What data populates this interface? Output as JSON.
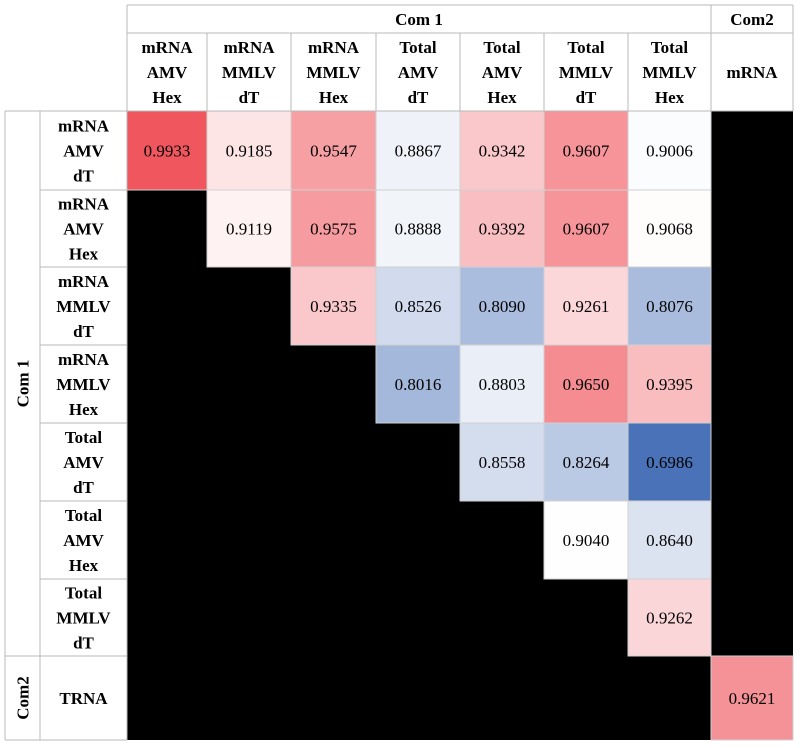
{
  "chart_data": {
    "type": "heatmap",
    "group_labels": {
      "columns": [
        "Com 1",
        "Com2"
      ],
      "rows": [
        "Com 1",
        "Com2"
      ]
    },
    "columns": [
      [
        "mRNA",
        "AMV",
        "Hex"
      ],
      [
        "mRNA",
        "MMLV",
        "dT"
      ],
      [
        "mRNA",
        "MMLV",
        "Hex"
      ],
      [
        "Total",
        "AMV",
        "dT"
      ],
      [
        "Total",
        "AMV",
        "Hex"
      ],
      [
        "Total",
        "MMLV",
        "dT"
      ],
      [
        "Total",
        "MMLV",
        "Hex"
      ],
      [
        "mRNA"
      ]
    ],
    "rows": [
      [
        "mRNA",
        "AMV",
        "dT"
      ],
      [
        "mRNA",
        "AMV",
        "Hex"
      ],
      [
        "mRNA",
        "MMLV",
        "dT"
      ],
      [
        "mRNA",
        "MMLV",
        "Hex"
      ],
      [
        "Total",
        "AMV",
        "dT"
      ],
      [
        "Total",
        "AMV",
        "Hex"
      ],
      [
        "Total",
        "MMLV",
        "dT"
      ],
      [
        "TRNA"
      ]
    ],
    "values": [
      [
        "0.9933",
        "0.9185",
        "0.9547",
        "0.8867",
        "0.9342",
        "0.9607",
        "0.9006",
        null
      ],
      [
        null,
        "0.9119",
        "0.9575",
        "0.8888",
        "0.9392",
        "0.9607",
        "0.9068",
        null
      ],
      [
        null,
        null,
        "0.9335",
        "0.8526",
        "0.8090",
        "0.9261",
        "0.8076",
        null
      ],
      [
        null,
        null,
        null,
        "0.8016",
        "0.8803",
        "0.9650",
        "0.9395",
        null
      ],
      [
        null,
        null,
        null,
        null,
        "0.8558",
        "0.8264",
        "0.6986",
        null
      ],
      [
        null,
        null,
        null,
        null,
        null,
        "0.9040",
        "0.8640",
        null
      ],
      [
        null,
        null,
        null,
        null,
        null,
        null,
        "0.9262",
        null
      ],
      [
        null,
        null,
        null,
        null,
        null,
        null,
        null,
        "0.9621"
      ]
    ],
    "color_scale": {
      "low": "#4a72b8",
      "mid": "#ffffff",
      "high": "#f0565e",
      "empty": "#000000"
    }
  }
}
